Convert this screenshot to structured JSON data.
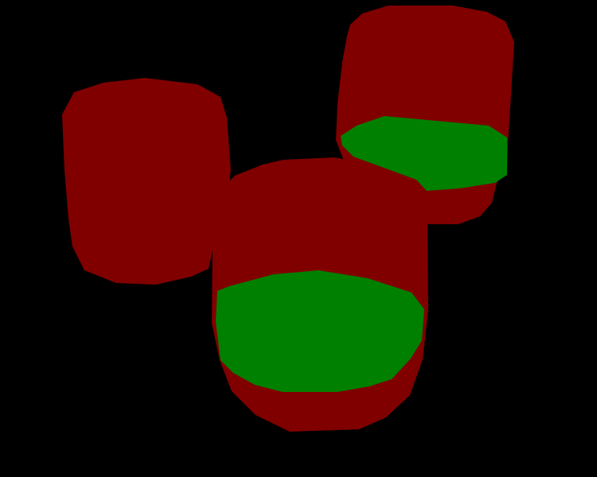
{
  "scene": {
    "background_color": "#000000",
    "body_color": "#800000",
    "cap_color": "#008000",
    "objects": [
      {
        "id": "cylinder-left",
        "cap_visible": false
      },
      {
        "id": "cylinder-back-right",
        "cap_visible": true
      },
      {
        "id": "cylinder-front",
        "cap_visible": true
      }
    ]
  }
}
